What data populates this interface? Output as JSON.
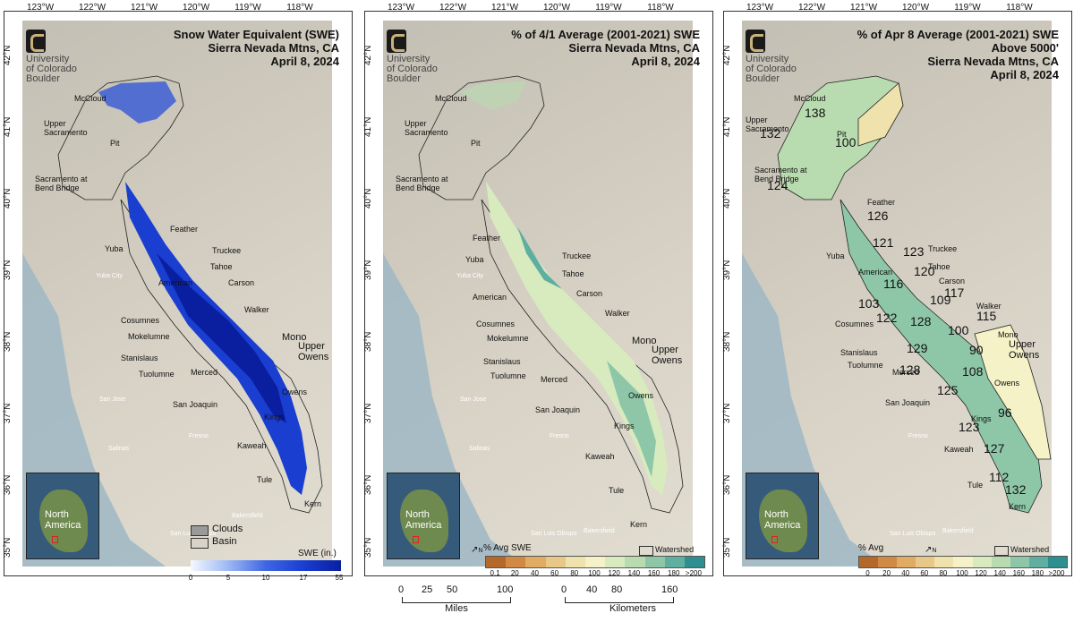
{
  "lon_ticks": [
    "123°W",
    "122°W",
    "121°W",
    "120°W",
    "119°W",
    "118°W"
  ],
  "lat_ticks": [
    "42°N",
    "41°N",
    "40°N",
    "39°N",
    "38°N",
    "37°N",
    "36°N",
    "35°N"
  ],
  "logo": {
    "line1": "University",
    "line2": "of Colorado",
    "line3": "Boulder"
  },
  "north_arrow": "N",
  "inset": {
    "label_line1": "North",
    "label_line2": "America"
  },
  "basins": [
    "McCloud",
    "Upper Sacramento",
    "Pit",
    "Sacramento at Bend Bridge",
    "Feather",
    "Yuba",
    "Truckee",
    "Tahoe",
    "American",
    "Carson",
    "Walker",
    "Cosumnes",
    "Mokelumne",
    "Mono",
    "Upper Owens",
    "Stanislaus",
    "Tuolumne",
    "Merced",
    "Owens",
    "San Joaquin",
    "Kings",
    "Kaweah",
    "Tule",
    "Kern"
  ],
  "cities": [
    "Yuba City",
    "San Jose",
    "Salinas",
    "Fresno",
    "San Luis Obispo",
    "Bakersfield"
  ],
  "panel1": {
    "title_line1": "Snow Water Equivalent (SWE)",
    "title_line2": "Sierra Nevada Mtns, CA",
    "title_line3": "April 8, 2024",
    "legend_clouds": "Clouds",
    "legend_basin": "Basin",
    "colorbar_title": "SWE (in.)",
    "colorbar_ticks": [
      "0",
      "5",
      "10",
      "17",
      "55"
    ]
  },
  "panel2": {
    "title_line1": "% of 4/1 Average (2001-2021) SWE",
    "title_line2": "Sierra Nevada Mtns, CA",
    "title_line3": "April 8, 2024",
    "legend_watershed": "Watershed",
    "colorbar_title": "% Avg SWE",
    "colorbar_ticks": [
      "0.1",
      "20",
      "40",
      "60",
      "80",
      "100",
      "120",
      "140",
      "160",
      "180",
      ">200"
    ]
  },
  "panel3": {
    "title_line1": "% of Apr 8 Average (2001-2021) SWE",
    "title_line2": "Above 5000'",
    "title_line3": "Sierra Nevada Mtns, CA",
    "title_line4": "April 8, 2024",
    "legend_watershed": "Watershed",
    "colorbar_title": "% Avg",
    "colorbar_ticks": [
      "0",
      "20",
      "40",
      "60",
      "80",
      "100",
      "120",
      "140",
      "160",
      "180",
      ">200"
    ],
    "values": [
      "138",
      "132",
      "100",
      "124",
      "126",
      "121",
      "123",
      "120",
      "116",
      "117",
      "109",
      "103",
      "122",
      "128",
      "115",
      "100",
      "129",
      "90",
      "108",
      "128",
      "125",
      "96",
      "123",
      "127",
      "112",
      "132"
    ]
  },
  "scale_miles": {
    "ticks": [
      "0",
      "25",
      "50",
      "100"
    ],
    "unit": "Miles"
  },
  "scale_km": {
    "ticks": [
      "0",
      "40",
      "80",
      "160"
    ],
    "unit": "Kilometers"
  },
  "colors": {
    "swe_low": "#e8f0ff",
    "swe_high": "#1030c0",
    "pct_ramp": [
      "#b4682a",
      "#d08a43",
      "#e0ab62",
      "#e8c888",
      "#f0e2ad",
      "#f4f2c6",
      "#d7ebbf",
      "#b8dcb0",
      "#8ec7a8",
      "#5fae9f",
      "#2e8f90"
    ]
  }
}
